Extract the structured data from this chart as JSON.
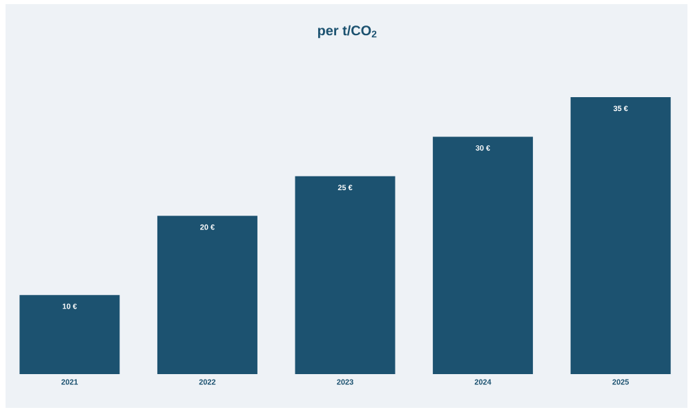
{
  "chart_data": {
    "type": "bar",
    "title": "per t/CO$_{2}$",
    "categories": [
      "2021",
      "2022",
      "2023",
      "2024",
      "2025"
    ],
    "values": [
      10,
      20,
      25,
      30,
      35
    ],
    "value_labels": [
      "10 €",
      "20 €",
      "25 €",
      "30 €",
      "35 €"
    ],
    "color": "#1c5270"
  }
}
